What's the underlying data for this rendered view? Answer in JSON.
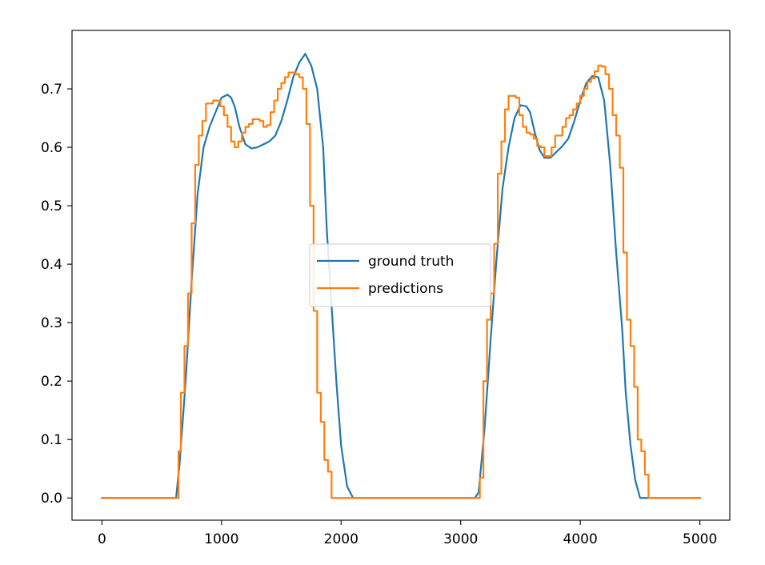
{
  "chart_data": {
    "type": "line",
    "title": "",
    "xlabel": "",
    "ylabel": "",
    "xlim": [
      -250,
      5250
    ],
    "ylim": [
      -0.038,
      0.8
    ],
    "xticks": [
      0,
      1000,
      2000,
      3000,
      4000,
      5000
    ],
    "yticks": [
      0.0,
      0.1,
      0.2,
      0.3,
      0.4,
      0.5,
      0.6,
      0.7
    ],
    "xtick_labels": [
      "0",
      "1000",
      "2000",
      "3000",
      "4000",
      "5000"
    ],
    "ytick_labels": [
      "0.0",
      "0.1",
      "0.2",
      "0.3",
      "0.4",
      "0.5",
      "0.6",
      "0.7"
    ],
    "grid": false,
    "legend_position": "center",
    "series": [
      {
        "name": "ground truth",
        "color": "#1f77b4",
        "style": "smooth",
        "x": [
          0,
          600,
          620,
          650,
          700,
          750,
          800,
          850,
          900,
          950,
          1000,
          1050,
          1080,
          1110,
          1150,
          1200,
          1250,
          1300,
          1350,
          1400,
          1450,
          1500,
          1550,
          1600,
          1650,
          1700,
          1750,
          1800,
          1850,
          1880,
          1920,
          1960,
          2000,
          2050,
          2100,
          2150,
          2200,
          2300,
          2600,
          2900,
          3100,
          3120,
          3150,
          3200,
          3250,
          3300,
          3350,
          3400,
          3450,
          3500,
          3550,
          3580,
          3620,
          3660,
          3700,
          3750,
          3800,
          3850,
          3900,
          3950,
          4000,
          4050,
          4100,
          4150,
          4200,
          4250,
          4300,
          4350,
          4380,
          4420,
          4460,
          4500,
          4550,
          4600,
          4650,
          4700,
          4720,
          4800,
          5000
        ],
        "y": [
          0.0,
          0.0,
          0.0,
          0.06,
          0.2,
          0.37,
          0.52,
          0.6,
          0.635,
          0.66,
          0.685,
          0.69,
          0.685,
          0.67,
          0.635,
          0.605,
          0.598,
          0.6,
          0.605,
          0.61,
          0.62,
          0.645,
          0.68,
          0.72,
          0.745,
          0.76,
          0.74,
          0.7,
          0.6,
          0.46,
          0.33,
          0.2,
          0.09,
          0.02,
          0.0,
          0.0,
          0.0,
          0.0,
          0.0,
          0.0,
          0.0,
          0.0,
          0.01,
          0.12,
          0.27,
          0.41,
          0.53,
          0.6,
          0.65,
          0.672,
          0.67,
          0.66,
          0.625,
          0.595,
          0.582,
          0.582,
          0.592,
          0.602,
          0.615,
          0.645,
          0.68,
          0.71,
          0.722,
          0.72,
          0.68,
          0.57,
          0.42,
          0.29,
          0.18,
          0.09,
          0.03,
          0.0,
          0.0,
          0.0,
          0.0,
          0.0,
          0.0,
          0.0,
          0.0
        ]
      },
      {
        "name": "predictions",
        "color": "#ff7f0e",
        "style": "step",
        "x": [
          0,
          640,
          660,
          690,
          720,
          750,
          780,
          810,
          840,
          870,
          900,
          930,
          960,
          990,
          1020,
          1050,
          1080,
          1110,
          1140,
          1170,
          1200,
          1230,
          1260,
          1290,
          1320,
          1350,
          1380,
          1410,
          1440,
          1470,
          1500,
          1530,
          1560,
          1590,
          1620,
          1650,
          1680,
          1710,
          1740,
          1770,
          1800,
          1830,
          1860,
          1890,
          1920,
          1950,
          1980,
          2010,
          2040,
          2070,
          2100,
          2130,
          2160,
          2190,
          2220,
          3160,
          3190,
          3220,
          3250,
          3280,
          3310,
          3340,
          3370,
          3400,
          3430,
          3460,
          3490,
          3520,
          3550,
          3580,
          3610,
          3640,
          3670,
          3700,
          3730,
          3760,
          3790,
          3820,
          3850,
          3880,
          3910,
          3940,
          3970,
          4000,
          4030,
          4060,
          4090,
          4120,
          4150,
          4180,
          4210,
          4240,
          4270,
          4300,
          4330,
          4360,
          4390,
          4420,
          4450,
          4480,
          4510,
          4540,
          4570,
          4600,
          4630,
          4660,
          4690,
          4720,
          5000
        ],
        "y": [
          0.0,
          0.08,
          0.18,
          0.26,
          0.35,
          0.47,
          0.57,
          0.62,
          0.645,
          0.675,
          0.675,
          0.68,
          0.68,
          0.67,
          0.655,
          0.635,
          0.61,
          0.6,
          0.61,
          0.625,
          0.635,
          0.64,
          0.648,
          0.648,
          0.645,
          0.635,
          0.638,
          0.66,
          0.68,
          0.7,
          0.71,
          0.72,
          0.728,
          0.728,
          0.725,
          0.72,
          0.7,
          0.64,
          0.5,
          0.32,
          0.18,
          0.13,
          0.065,
          0.045,
          0.0,
          0.0,
          0.0,
          0.0,
          0.0,
          0.0,
          0.0,
          0.0,
          0.0,
          0.0,
          0.0,
          0.035,
          0.2,
          0.305,
          0.35,
          0.435,
          0.555,
          0.61,
          0.665,
          0.688,
          0.688,
          0.685,
          0.655,
          0.635,
          0.625,
          0.622,
          0.615,
          0.602,
          0.6,
          0.585,
          0.585,
          0.6,
          0.62,
          0.62,
          0.635,
          0.65,
          0.655,
          0.665,
          0.675,
          0.688,
          0.7,
          0.712,
          0.718,
          0.73,
          0.74,
          0.738,
          0.725,
          0.7,
          0.655,
          0.62,
          0.565,
          0.42,
          0.305,
          0.26,
          0.19,
          0.1,
          0.08,
          0.04,
          0.0,
          0.0,
          0.0,
          0.0,
          0.0,
          0.0,
          0.0
        ]
      }
    ]
  }
}
